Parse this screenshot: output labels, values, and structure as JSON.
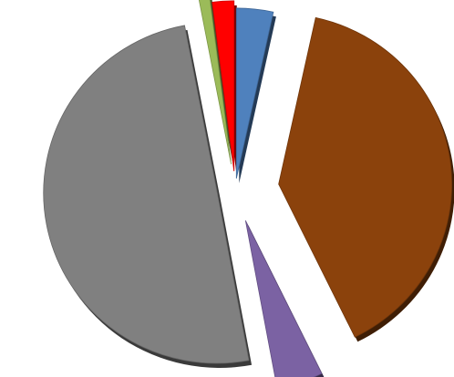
{
  "chart_data": {
    "type": "pie",
    "style": "exploded-3d",
    "title": "",
    "legend": "none",
    "slices": [
      {
        "value": 3.4,
        "color": "#4f81bd"
      },
      {
        "value": 39.0,
        "color": "#8b420c"
      },
      {
        "value": 4.3,
        "color": "#7b62a3"
      },
      {
        "value": 49.5,
        "color": "#808080"
      },
      {
        "value": 1.0,
        "color": "#9bbb59"
      },
      {
        "value": 2.0,
        "color": "#ff0000"
      }
    ]
  }
}
